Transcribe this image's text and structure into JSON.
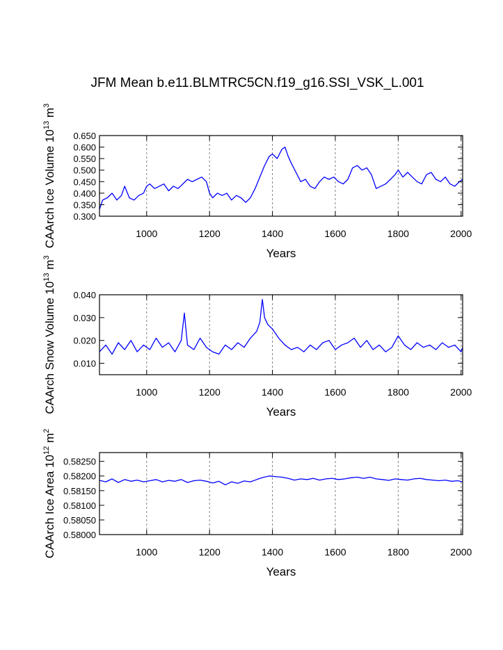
{
  "page": {
    "title": "JFM Mean b.e11.BLMTRC5CN.f19_g16.SSI_VSK_L.001"
  },
  "colors": {
    "line": "#0000ff",
    "axis": "#000000",
    "grid": "#808080"
  },
  "chart_data": [
    {
      "type": "line",
      "ylabel_main": "CAArch Ice Volume 10",
      "ylabel_exp": "13",
      "ylabel_unit": " m",
      "ylabel_unit_exp": "3",
      "xlabel": "Years",
      "xlim": [
        850,
        2005
      ],
      "ylim": [
        0.3,
        0.65
      ],
      "xticks": [
        1000,
        1200,
        1400,
        1600,
        1800,
        2000
      ],
      "xtick_labels": [
        "1000",
        "1200",
        "1400",
        "1600",
        "1800",
        "2000"
      ],
      "yticks": [
        0.3,
        0.35,
        0.4,
        0.45,
        0.5,
        0.55,
        0.6,
        0.65
      ],
      "ytick_labels": [
        "0.300",
        "0.350",
        "0.400",
        "0.450",
        "0.500",
        "0.550",
        "0.600",
        "0.650"
      ],
      "grid": "vertical dashed",
      "series": [
        {
          "x": [
            850,
            860,
            875,
            890,
            905,
            920,
            930,
            945,
            960,
            975,
            990,
            1000,
            1010,
            1025,
            1040,
            1055,
            1070,
            1085,
            1100,
            1115,
            1130,
            1145,
            1160,
            1175,
            1190,
            1200,
            1210,
            1225,
            1240,
            1255,
            1270,
            1285,
            1300,
            1315,
            1330,
            1345,
            1360,
            1375,
            1390,
            1400,
            1415,
            1430,
            1440,
            1450,
            1460,
            1475,
            1490,
            1505,
            1520,
            1535,
            1550,
            1565,
            1580,
            1595,
            1610,
            1625,
            1640,
            1655,
            1670,
            1685,
            1700,
            1715,
            1730,
            1745,
            1760,
            1775,
            1790,
            1800,
            1815,
            1830,
            1845,
            1860,
            1875,
            1890,
            1905,
            1920,
            1935,
            1950,
            1965,
            1980,
            1995,
            2005
          ],
          "y": [
            0.33,
            0.37,
            0.38,
            0.4,
            0.37,
            0.39,
            0.43,
            0.38,
            0.37,
            0.39,
            0.4,
            0.43,
            0.44,
            0.42,
            0.43,
            0.44,
            0.41,
            0.43,
            0.42,
            0.44,
            0.46,
            0.45,
            0.46,
            0.47,
            0.45,
            0.4,
            0.38,
            0.4,
            0.39,
            0.4,
            0.37,
            0.39,
            0.38,
            0.36,
            0.38,
            0.42,
            0.47,
            0.52,
            0.56,
            0.57,
            0.55,
            0.59,
            0.6,
            0.56,
            0.53,
            0.49,
            0.45,
            0.46,
            0.43,
            0.42,
            0.45,
            0.47,
            0.46,
            0.47,
            0.45,
            0.44,
            0.46,
            0.51,
            0.52,
            0.5,
            0.51,
            0.48,
            0.42,
            0.43,
            0.44,
            0.46,
            0.48,
            0.5,
            0.47,
            0.49,
            0.47,
            0.45,
            0.44,
            0.48,
            0.49,
            0.46,
            0.45,
            0.47,
            0.44,
            0.43,
            0.45,
            0.46
          ]
        }
      ]
    },
    {
      "type": "line",
      "ylabel_main": "CAArch Snow Volume 10",
      "ylabel_exp": "13",
      "ylabel_unit": " m",
      "ylabel_unit_exp": "3",
      "xlabel": "Years",
      "xlim": [
        850,
        2005
      ],
      "ylim": [
        0.005,
        0.04
      ],
      "xticks": [
        1000,
        1200,
        1400,
        1600,
        1800,
        2000
      ],
      "xtick_labels": [
        "1000",
        "1200",
        "1400",
        "1600",
        "1800",
        "2000"
      ],
      "yticks": [
        0.01,
        0.02,
        0.03,
        0.04
      ],
      "ytick_labels": [
        "0.010",
        "0.020",
        "0.030",
        "0.040"
      ],
      "grid": "vertical dashed",
      "series": [
        {
          "x": [
            850,
            870,
            890,
            910,
            930,
            950,
            970,
            990,
            1010,
            1030,
            1050,
            1070,
            1090,
            1110,
            1120,
            1130,
            1150,
            1170,
            1190,
            1210,
            1230,
            1250,
            1270,
            1290,
            1310,
            1330,
            1350,
            1360,
            1368,
            1375,
            1385,
            1400,
            1420,
            1440,
            1460,
            1480,
            1500,
            1520,
            1540,
            1560,
            1580,
            1600,
            1620,
            1640,
            1660,
            1680,
            1700,
            1720,
            1740,
            1760,
            1780,
            1800,
            1820,
            1840,
            1860,
            1880,
            1900,
            1920,
            1940,
            1960,
            1980,
            2000,
            2005
          ],
          "y": [
            0.015,
            0.018,
            0.014,
            0.019,
            0.016,
            0.02,
            0.015,
            0.018,
            0.016,
            0.021,
            0.017,
            0.019,
            0.015,
            0.02,
            0.032,
            0.018,
            0.016,
            0.021,
            0.017,
            0.015,
            0.014,
            0.018,
            0.016,
            0.019,
            0.017,
            0.021,
            0.024,
            0.028,
            0.038,
            0.03,
            0.027,
            0.025,
            0.021,
            0.018,
            0.016,
            0.017,
            0.015,
            0.018,
            0.016,
            0.019,
            0.02,
            0.016,
            0.018,
            0.019,
            0.021,
            0.017,
            0.02,
            0.016,
            0.018,
            0.015,
            0.017,
            0.022,
            0.018,
            0.016,
            0.019,
            0.017,
            0.018,
            0.016,
            0.019,
            0.017,
            0.018,
            0.015,
            0.017
          ]
        }
      ]
    },
    {
      "type": "line",
      "ylabel_main": "CAArch Ice Area 10",
      "ylabel_exp": "12",
      "ylabel_unit": " m",
      "ylabel_unit_exp": "2",
      "xlabel": "Years",
      "xlim": [
        850,
        2005
      ],
      "ylim": [
        0.58,
        0.5828
      ],
      "xticks": [
        1000,
        1200,
        1400,
        1600,
        1800,
        2000
      ],
      "xtick_labels": [
        "1000",
        "1200",
        "1400",
        "1600",
        "1800",
        "2000"
      ],
      "yticks": [
        0.58,
        0.5805,
        0.581,
        0.5815,
        0.582,
        0.5825
      ],
      "ytick_labels": [
        "0.58000",
        "0.58050",
        "0.58100",
        "0.58150",
        "0.58200",
        "0.58250"
      ],
      "grid": "vertical dashed",
      "series": [
        {
          "x": [
            850,
            870,
            890,
            910,
            930,
            950,
            970,
            990,
            1010,
            1030,
            1050,
            1070,
            1090,
            1110,
            1130,
            1150,
            1170,
            1190,
            1210,
            1230,
            1250,
            1270,
            1290,
            1310,
            1330,
            1350,
            1370,
            1390,
            1410,
            1430,
            1450,
            1470,
            1490,
            1510,
            1530,
            1550,
            1570,
            1590,
            1610,
            1630,
            1650,
            1670,
            1690,
            1710,
            1730,
            1750,
            1770,
            1790,
            1810,
            1830,
            1850,
            1870,
            1890,
            1910,
            1930,
            1950,
            1970,
            1990,
            2005
          ],
          "y": [
            0.58185,
            0.5818,
            0.5819,
            0.58178,
            0.58188,
            0.58182,
            0.58186,
            0.5818,
            0.58184,
            0.58188,
            0.5818,
            0.58185,
            0.58182,
            0.58188,
            0.58178,
            0.58184,
            0.58186,
            0.58182,
            0.58176,
            0.58182,
            0.5817,
            0.5818,
            0.58175,
            0.58183,
            0.5818,
            0.58188,
            0.58195,
            0.582,
            0.58198,
            0.58196,
            0.58192,
            0.58186,
            0.5819,
            0.58188,
            0.58192,
            0.58186,
            0.5819,
            0.58192,
            0.58188,
            0.5819,
            0.58194,
            0.58196,
            0.58192,
            0.58196,
            0.5819,
            0.58188,
            0.58185,
            0.5819,
            0.58188,
            0.58186,
            0.5819,
            0.58192,
            0.58188,
            0.58186,
            0.58184,
            0.58186,
            0.58182,
            0.58184,
            0.5818
          ]
        }
      ]
    }
  ]
}
